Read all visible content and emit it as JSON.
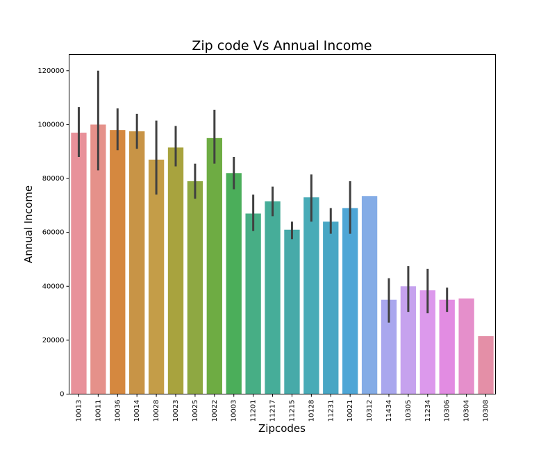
{
  "chart_data": {
    "type": "bar",
    "title": "Zip code Vs Annual Income",
    "xlabel": "Zipcodes",
    "ylabel": "Annual Income",
    "ylim": [
      0,
      126000
    ],
    "yticks": [
      0,
      20000,
      40000,
      60000,
      80000,
      100000,
      120000
    ],
    "grid": false,
    "legend": "none",
    "categories": [
      "10013",
      "10011",
      "10036",
      "10014",
      "10028",
      "10023",
      "10025",
      "10022",
      "10003",
      "11201",
      "11217",
      "11215",
      "10128",
      "11231",
      "10021",
      "10312",
      "11434",
      "10305",
      "11234",
      "10306",
      "10304",
      "10308"
    ],
    "values": [
      97000,
      100000,
      98000,
      97500,
      87000,
      91500,
      79000,
      95000,
      82000,
      67000,
      71500,
      61000,
      73000,
      64000,
      69000,
      73500,
      35000,
      40000,
      38500,
      35000,
      35500,
      21500
    ],
    "error_low": [
      88000,
      83000,
      90500,
      91000,
      74000,
      84500,
      72500,
      85500,
      76000,
      60500,
      66000,
      57500,
      64000,
      59500,
      59500,
      null,
      26500,
      30500,
      30000,
      30500,
      null,
      null
    ],
    "error_high": [
      106500,
      120000,
      106000,
      104000,
      101500,
      99500,
      85500,
      105500,
      88000,
      74000,
      77000,
      64000,
      81500,
      69000,
      79000,
      null,
      43000,
      47500,
      46500,
      39500,
      null,
      null
    ],
    "colors": [
      "#E8919A",
      "#E5918A",
      "#D5883F",
      "#C89446",
      "#C49D48",
      "#A8A33E",
      "#8EA842",
      "#6EAC43",
      "#4BAE5A",
      "#47AE85",
      "#46AD99",
      "#47AAA9",
      "#48ABB7",
      "#48A6C4",
      "#4EA6D6",
      "#84ACE6",
      "#A9A7EE",
      "#C6A2EE",
      "#DC99EC",
      "#E28CE2",
      "#E58FCB",
      "#E48FA7"
    ]
  }
}
